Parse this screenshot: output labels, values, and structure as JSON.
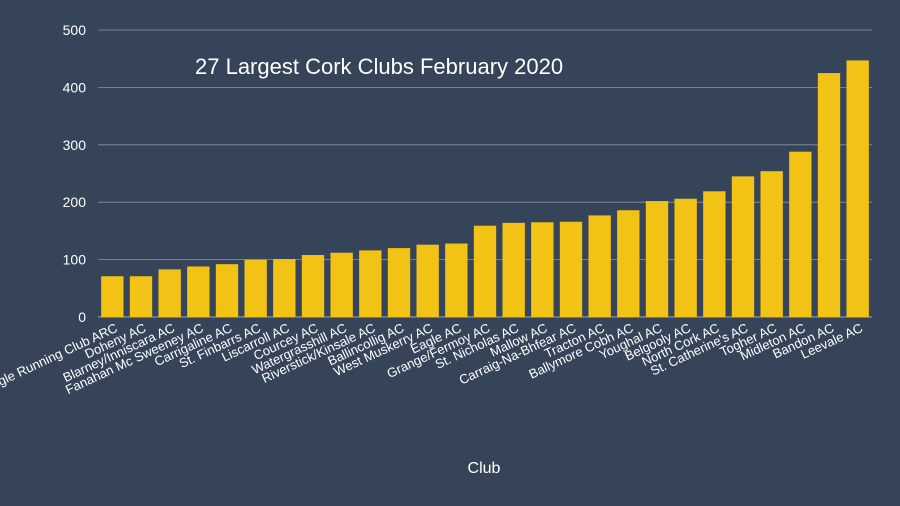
{
  "chart_data": {
    "type": "bar",
    "title": "27 Largest Cork Clubs February 2020",
    "xlabel": "Club",
    "ylabel": "",
    "ylim": [
      0,
      500
    ],
    "yticks": [
      0,
      100,
      200,
      300,
      400,
      500
    ],
    "grid": true,
    "legend": "none",
    "bar_color": "#f2c314",
    "gridline_color": "#8a93a0",
    "categories": [
      "Eagle Running Club ARC",
      "Doheny AC",
      "Blarney/Inniscara AC",
      "Fanahan Mc Sweeney AC",
      "Carrigaline AC",
      "St. Finbarrs AC",
      "Liscarroll AC",
      "Courcey AC",
      "Watergrasshill AC",
      "Riverstick/Kinsale AC",
      "Ballincollig AC",
      "West Muskerry AC",
      "Eagle AC",
      "Grange/Fermoy AC",
      "St. Nicholas AC",
      "Mallow AC",
      "Carraig-Na-Bhfear AC",
      "Tracton AC",
      "Ballymore Cobh AC",
      "Youghal AC",
      "Belgooly AC",
      "North Cork AC",
      "St. Catherine's AC",
      "Togher AC",
      "Midleton AC",
      "Bandon AC",
      "Leevale AC"
    ],
    "values": [
      71,
      71,
      83,
      88,
      92,
      100,
      101,
      108,
      112,
      116,
      120,
      126,
      128,
      159,
      164,
      165,
      166,
      177,
      186,
      202,
      206,
      219,
      245,
      254,
      288,
      425,
      447
    ]
  }
}
